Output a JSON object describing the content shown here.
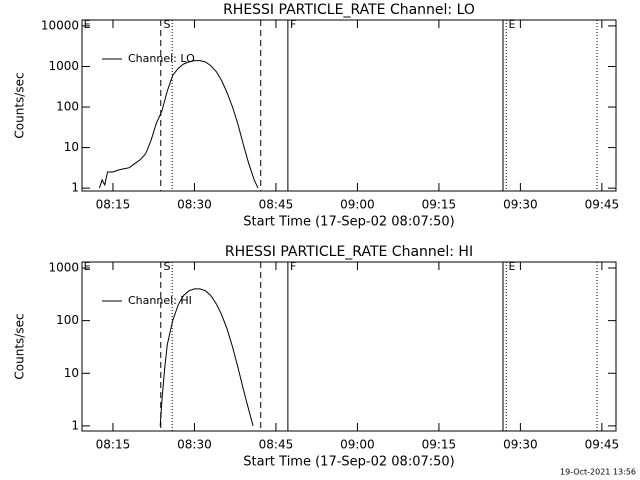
{
  "chart_data": [
    {
      "type": "line",
      "title": "RHESSI PARTICLE_RATE Channel: LO",
      "xlabel": "Start Time (17-Sep-02 08:07:50)",
      "ylabel": "Counts/sec",
      "log_y": true,
      "xlim": [
        489.3,
        587.6
      ],
      "ylim": [
        0.85,
        14000
      ],
      "xticks": [
        {
          "value": 495,
          "label": "08:15"
        },
        {
          "value": 510,
          "label": "08:30"
        },
        {
          "value": 525,
          "label": "08:45"
        },
        {
          "value": 540,
          "label": "09:00"
        },
        {
          "value": 555,
          "label": "09:15"
        },
        {
          "value": 570,
          "label": "09:30"
        },
        {
          "value": 585,
          "label": "09:45"
        }
      ],
      "yticks": [
        1,
        10,
        100,
        1000,
        10000
      ],
      "markers": [
        {
          "x": 503.8,
          "style": "dashed"
        },
        {
          "x": 505.9,
          "style": "dotted"
        },
        {
          "x": 522.2,
          "style": "dashed"
        },
        {
          "x": 527.2,
          "style": "solid"
        },
        {
          "x": 566.8,
          "style": "solid"
        },
        {
          "x": 567.4,
          "style": "dotted"
        },
        {
          "x": 584.1,
          "style": "dotted"
        }
      ],
      "marker_labels": [
        {
          "x": 489.6,
          "text": "E"
        },
        {
          "x": 504.3,
          "text": "S"
        },
        {
          "x": 527.6,
          "text": "F"
        },
        {
          "x": 567.8,
          "text": "E"
        }
      ],
      "series": [
        {
          "name": "Channel: LO",
          "color": "#000000",
          "x": [
            492.5,
            493,
            493.5,
            494,
            495,
            496,
            497,
            498,
            499,
            500,
            501,
            502,
            503,
            504,
            505,
            506,
            507,
            508,
            509,
            510,
            511,
            512,
            513,
            514,
            515,
            516,
            517,
            518,
            519,
            520,
            521,
            521.7
          ],
          "values": [
            1,
            1.6,
            1.2,
            2.5,
            2.5,
            2.8,
            3,
            3.2,
            4,
            5,
            7,
            15,
            40,
            80,
            250,
            600,
            900,
            1150,
            1300,
            1400,
            1400,
            1300,
            1050,
            750,
            450,
            230,
            100,
            38,
            12,
            4,
            1.6,
            1
          ]
        }
      ]
    },
    {
      "type": "line",
      "title": "RHESSI PARTICLE_RATE Channel: HI",
      "xlabel": "Start Time (17-Sep-02 08:07:50)",
      "ylabel": "Counts/sec",
      "log_y": true,
      "xlim": [
        489.3,
        587.6
      ],
      "ylim": [
        0.8,
        1300
      ],
      "xticks": [
        {
          "value": 495,
          "label": "08:15"
        },
        {
          "value": 510,
          "label": "08:30"
        },
        {
          "value": 525,
          "label": "08:45"
        },
        {
          "value": 540,
          "label": "09:00"
        },
        {
          "value": 555,
          "label": "09:15"
        },
        {
          "value": 570,
          "label": "09:30"
        },
        {
          "value": 585,
          "label": "09:45"
        }
      ],
      "yticks": [
        1,
        10,
        100,
        1000
      ],
      "markers": [
        {
          "x": 503.8,
          "style": "dashed"
        },
        {
          "x": 505.9,
          "style": "dotted"
        },
        {
          "x": 522.2,
          "style": "dashed"
        },
        {
          "x": 527.2,
          "style": "solid"
        },
        {
          "x": 566.8,
          "style": "solid"
        },
        {
          "x": 567.4,
          "style": "dotted"
        },
        {
          "x": 584.1,
          "style": "dotted"
        }
      ],
      "marker_labels": [
        {
          "x": 489.6,
          "text": "E"
        },
        {
          "x": 504.3,
          "text": "S"
        },
        {
          "x": 527.6,
          "text": "F"
        },
        {
          "x": 567.8,
          "text": "E"
        }
      ],
      "series": [
        {
          "name": "Channel: HI",
          "color": "#000000",
          "x": [
            503.7,
            504,
            504.5,
            505,
            506,
            507,
            508,
            509,
            510,
            511,
            512,
            513,
            514,
            515,
            516,
            517,
            518,
            519,
            520,
            520.8
          ],
          "values": [
            1,
            3,
            12,
            35,
            100,
            200,
            300,
            370,
            400,
            400,
            370,
            300,
            210,
            130,
            70,
            32,
            13,
            5,
            2,
            1
          ]
        }
      ]
    }
  ],
  "footer": "19-Oct-2021 13:56"
}
